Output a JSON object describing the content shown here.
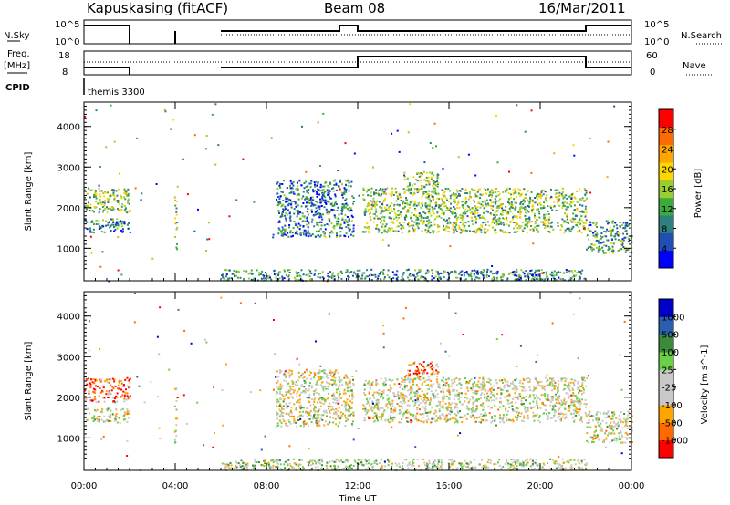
{
  "header": {
    "station": "Kapuskasing (fitACF)",
    "beam": "Beam 08",
    "date": "16/Mar/2011"
  },
  "params": {
    "nsky_label": "N.Sky",
    "nsearch_label": "N.Search",
    "freq_label_line1": "Freq.",
    "freq_label_line2": "[MHz]",
    "nave_label": "Nave",
    "cpid_label": "CPID",
    "cpid_value": "themis 3300",
    "noise_ticks": [
      "10^5",
      "10^0"
    ],
    "freq_ticks": [
      "18",
      "8"
    ],
    "nave_ticks": [
      "60",
      "0"
    ]
  },
  "colors": {
    "power": [
      "#0000ff",
      "#1f4fb3",
      "#2f7f7f",
      "#3caa3c",
      "#9acd32",
      "#ffd700",
      "#ffa500",
      "#ff6a00",
      "#ff0000"
    ],
    "velocity": [
      "#ff0000",
      "#ff6a00",
      "#ffa500",
      "#c8c8c8",
      "#c8c8c8",
      "#6ad048",
      "#3c8a3c",
      "#2a5fb0",
      "#0000c8"
    ]
  },
  "chart_data": [
    {
      "type": "heatmap",
      "title": "",
      "xlabel": "",
      "ylabel": "Slant Range [km]",
      "xlim": [
        0,
        24
      ],
      "ylim": [
        200,
        4600
      ],
      "x_ticks": [
        0,
        4,
        8,
        12,
        16,
        20,
        24
      ],
      "x_tick_labels": [
        "00:00",
        "04:00",
        "08:00",
        "12:00",
        "16:00",
        "20:00",
        "00:00"
      ],
      "y_ticks": [
        1000,
        2000,
        3000,
        4000
      ],
      "colorbar": {
        "label": "Power [dB]",
        "range": [
          0,
          32
        ],
        "ticks": [
          "4",
          "8",
          "12",
          "16",
          "20",
          "24",
          "28"
        ]
      },
      "regions": [
        {
          "t0": 0.0,
          "t1": 2.0,
          "r0": 1900,
          "r1": 2500,
          "level": 0.45
        },
        {
          "t0": 0.0,
          "t1": 2.0,
          "r0": 1400,
          "r1": 1750,
          "level": 0.3
        },
        {
          "t0": 3.95,
          "t1": 4.05,
          "r0": 900,
          "r1": 2300,
          "level": 0.5
        },
        {
          "t0": 6.0,
          "t1": 22.0,
          "r0": 220,
          "r1": 500,
          "level": 0.3
        },
        {
          "t0": 8.4,
          "t1": 11.8,
          "r0": 1300,
          "r1": 2700,
          "level": 0.25
        },
        {
          "t0": 12.2,
          "t1": 22.0,
          "r0": 1400,
          "r1": 2500,
          "level": 0.45
        },
        {
          "t0": 14.0,
          "t1": 15.5,
          "r0": 2500,
          "r1": 2900,
          "level": 0.45
        },
        {
          "t0": 22.0,
          "t1": 24.0,
          "r0": 900,
          "r1": 1700,
          "level": 0.35
        }
      ]
    },
    {
      "type": "heatmap",
      "title": "",
      "xlabel": "Time UT",
      "ylabel": "Slant Range [km]",
      "xlim": [
        0,
        24
      ],
      "ylim": [
        200,
        4600
      ],
      "x_ticks": [
        0,
        4,
        8,
        12,
        16,
        20,
        24
      ],
      "x_tick_labels": [
        "00:00",
        "04:00",
        "08:00",
        "12:00",
        "16:00",
        "20:00",
        "00:00"
      ],
      "y_ticks": [
        1000,
        2000,
        3000,
        4000
      ],
      "colorbar": {
        "label": "Velocity [m s^-1]",
        "ticks": [
          "1000",
          "500",
          "100",
          "25",
          "-25",
          "-100",
          "-500",
          "-1000"
        ]
      },
      "regions": [
        {
          "t0": 0.0,
          "t1": 2.0,
          "r0": 1900,
          "r1": 2500,
          "level": 0.15
        },
        {
          "t0": 0.0,
          "t1": 2.0,
          "r0": 1400,
          "r1": 1750,
          "level": 0.45
        },
        {
          "t0": 3.95,
          "t1": 4.05,
          "r0": 900,
          "r1": 2300,
          "level": 0.45
        },
        {
          "t0": 6.0,
          "t1": 22.0,
          "r0": 220,
          "r1": 500,
          "level": 0.5
        },
        {
          "t0": 8.4,
          "t1": 11.8,
          "r0": 1300,
          "r1": 2700,
          "level": 0.45
        },
        {
          "t0": 12.2,
          "t1": 22.0,
          "r0": 1400,
          "r1": 2500,
          "level": 0.45
        },
        {
          "t0": 14.0,
          "t1": 15.5,
          "r0": 2500,
          "r1": 2900,
          "level": 0.15
        },
        {
          "t0": 22.0,
          "t1": 24.0,
          "r0": 900,
          "r1": 1700,
          "level": 0.45
        }
      ]
    }
  ]
}
